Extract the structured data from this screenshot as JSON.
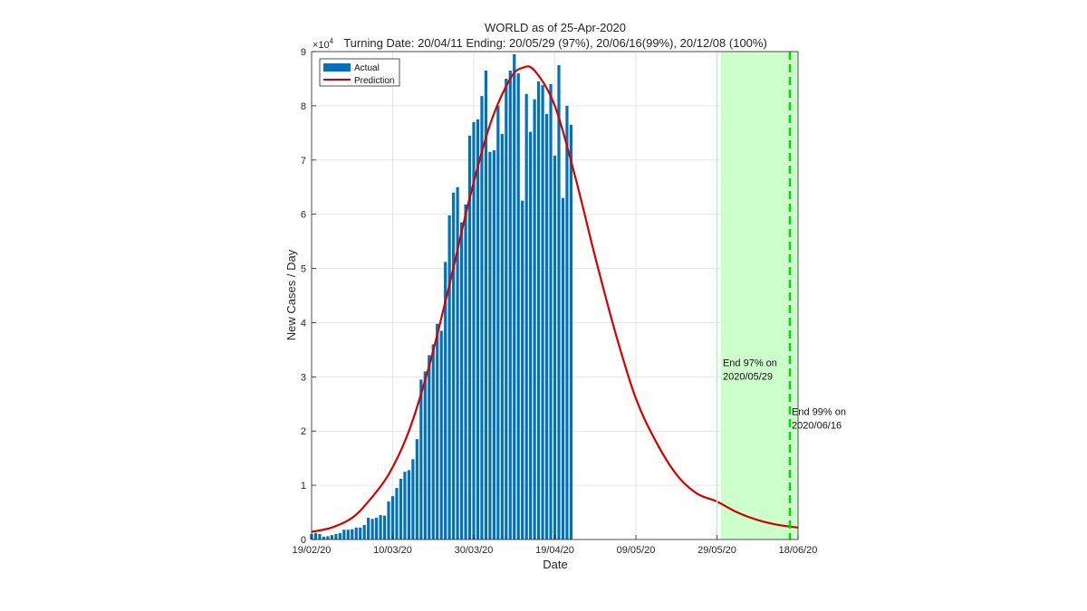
{
  "chart_data": {
    "type": "bar",
    "title": "WORLD as of 25-Apr-2020",
    "subtitle": "Turning Date: 20/04/11  Ending: 20/05/29 (97%), 20/06/16(99%), 20/12/08 (100%)",
    "xlabel": "Date",
    "ylabel": "New Cases / Day",
    "y_exponent_label": "×10",
    "y_exponent_power": "4",
    "x_start_date": "2020-02-19",
    "x_end_date": "2020-06-18",
    "ylim": [
      0,
      9
    ],
    "y_ticks": [
      0,
      1,
      2,
      3,
      4,
      5,
      6,
      7,
      8,
      9
    ],
    "x_ticks": [
      {
        "label": "19/02/20",
        "date": "2020-02-19"
      },
      {
        "label": "10/03/20",
        "date": "2020-03-10"
      },
      {
        "label": "30/03/20",
        "date": "2020-03-30"
      },
      {
        "label": "19/04/20",
        "date": "2020-04-19"
      },
      {
        "label": "09/05/20",
        "date": "2020-05-09"
      },
      {
        "label": "29/05/20",
        "date": "2020-05-29"
      },
      {
        "label": "18/06/20",
        "date": "2020-06-18"
      }
    ],
    "grid": true,
    "legend_position": "top-left",
    "legend": [
      "Actual",
      "Prediction"
    ],
    "series": [
      {
        "name": "Actual",
        "type": "bar",
        "color": "#0072bd",
        "start_date": "2020-02-19",
        "values": [
          0.1,
          0.12,
          0.1,
          0.05,
          0.06,
          0.08,
          0.1,
          0.12,
          0.18,
          0.18,
          0.19,
          0.22,
          0.22,
          0.27,
          0.4,
          0.38,
          0.4,
          0.45,
          0.44,
          0.7,
          0.8,
          0.95,
          1.12,
          1.25,
          1.28,
          1.48,
          1.85,
          2.95,
          3.1,
          3.4,
          3.6,
          3.98,
          3.85,
          5.12,
          5.98,
          6.4,
          6.5,
          5.85,
          6.18,
          7.45,
          7.7,
          7.75,
          8.18,
          8.65,
          7.15,
          7.18,
          8.0,
          7.48,
          8.5,
          8.65,
          8.95,
          8.6,
          6.25,
          8.22,
          7.52,
          8.12,
          8.45,
          8.38,
          7.85,
          8.4,
          7.08,
          8.75,
          6.3,
          8.0,
          7.65
        ]
      },
      {
        "name": "Prediction",
        "type": "line",
        "color": "#d40000",
        "points": [
          [
            "2020-02-19",
            0.14
          ],
          [
            "2020-02-24",
            0.22
          ],
          [
            "2020-02-29",
            0.4
          ],
          [
            "2020-03-04",
            0.7
          ],
          [
            "2020-03-09",
            1.2
          ],
          [
            "2020-03-14",
            2.0
          ],
          [
            "2020-03-19",
            3.2
          ],
          [
            "2020-03-24",
            4.7
          ],
          [
            "2020-03-29",
            6.3
          ],
          [
            "2020-04-03",
            7.65
          ],
          [
            "2020-04-08",
            8.5
          ],
          [
            "2020-04-11",
            8.7
          ],
          [
            "2020-04-14",
            8.65
          ],
          [
            "2020-04-19",
            8.0
          ],
          [
            "2020-04-24",
            6.7
          ],
          [
            "2020-04-29",
            5.2
          ],
          [
            "2020-05-04",
            3.8
          ],
          [
            "2020-05-09",
            2.6
          ],
          [
            "2020-05-14",
            1.8
          ],
          [
            "2020-05-19",
            1.2
          ],
          [
            "2020-05-24",
            0.85
          ],
          [
            "2020-05-29",
            0.7
          ],
          [
            "2020-06-03",
            0.5
          ],
          [
            "2020-06-08",
            0.36
          ],
          [
            "2020-06-13",
            0.27
          ],
          [
            "2020-06-18",
            0.22
          ]
        ]
      }
    ],
    "shaded_region": {
      "from": "2020-05-30",
      "to": "2020-06-18",
      "color": "#ccffcc"
    },
    "vertical_lines": [
      {
        "date": "2020-05-29",
        "color": "#b9f0b9",
        "style": "solid"
      },
      {
        "date": "2020-06-16",
        "color": "#00dd00",
        "style": "dashed"
      }
    ],
    "annotations": [
      {
        "lines": [
          "End 97% on",
          "2020/05/29"
        ],
        "date": "2020-05-30",
        "y": 3.2
      },
      {
        "lines": [
          "End 99% on",
          "2020/06/16"
        ],
        "date": "2020-06-16",
        "y": 2.3
      }
    ]
  }
}
